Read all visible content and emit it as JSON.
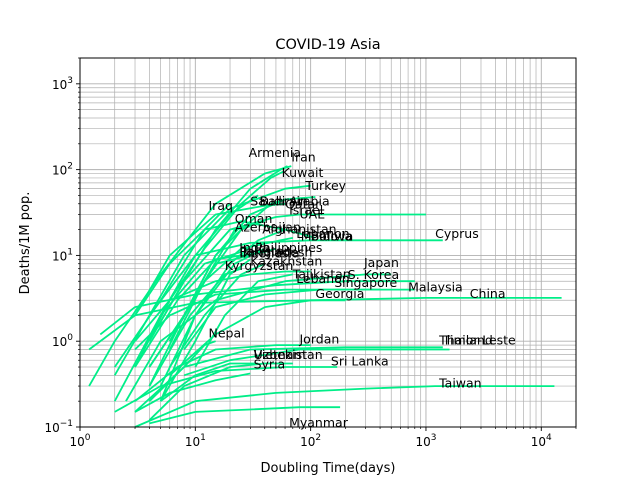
{
  "chart_data": {
    "type": "line",
    "title": "COVID-19  Asia",
    "xlabel": "Doubling Time(days)",
    "ylabel": "Deaths/1M pop.",
    "xscale": "log",
    "yscale": "log",
    "xlim": [
      1,
      20000
    ],
    "ylim": [
      0.1,
      2000
    ],
    "grid": true,
    "line_color": "#00ee88",
    "x_ticks": [
      {
        "base": "10",
        "exp": "0",
        "value": 1
      },
      {
        "base": "10",
        "exp": "1",
        "value": 10
      },
      {
        "base": "10",
        "exp": "2",
        "value": 100
      },
      {
        "base": "10",
        "exp": "3",
        "value": 1000
      },
      {
        "base": "10",
        "exp": "4",
        "value": 10000
      }
    ],
    "y_ticks": [
      {
        "base": "10",
        "exp": "−1",
        "value": 0.1
      },
      {
        "base": "10",
        "exp": "0",
        "value": 1
      },
      {
        "base": "10",
        "exp": "1",
        "value": 10
      },
      {
        "base": "10",
        "exp": "2",
        "value": 100
      },
      {
        "base": "10",
        "exp": "3",
        "value": 1000
      }
    ],
    "series": [
      {
        "name": "Armenia",
        "x": [
          4,
          8,
          15,
          30,
          55,
          63
        ],
        "y": [
          1,
          5,
          20,
          60,
          100,
          110
        ]
      },
      {
        "name": "Iran",
        "x": [
          1.2,
          2,
          5,
          15,
          40,
          68
        ],
        "y": [
          0.3,
          1,
          6,
          40,
          90,
          110
        ]
      },
      {
        "name": "Kuwait",
        "x": [
          3,
          6,
          12,
          25,
          45,
          58
        ],
        "y": [
          0.5,
          3,
          12,
          40,
          80,
          95
        ]
      },
      {
        "name": "Turkey",
        "x": [
          2,
          4,
          8,
          20,
          60,
          100
        ],
        "y": [
          0.4,
          2,
          10,
          35,
          60,
          65
        ]
      },
      {
        "name": "Bahrain",
        "x": [
          5,
          10,
          20,
          35
        ],
        "y": [
          2,
          10,
          30,
          50
        ]
      },
      {
        "name": "Saudi Arabia",
        "x": [
          4,
          8,
          15,
          30,
          60,
          110
        ],
        "y": [
          0.5,
          2,
          10,
          30,
          45,
          48
        ]
      },
      {
        "name": "Qatar",
        "x": [
          6,
          12,
          25,
          45,
          60
        ],
        "y": [
          1,
          5,
          20,
          40,
          45
        ]
      },
      {
        "name": "Israel",
        "x": [
          3,
          6,
          15,
          40,
          60
        ],
        "y": [
          2,
          10,
          30,
          38,
          40
        ]
      },
      {
        "name": "UAE",
        "x": [
          4,
          8,
          20,
          50,
          80,
          1000
        ],
        "y": [
          1,
          5,
          20,
          28,
          30,
          30
        ]
      },
      {
        "name": "Iraq",
        "x": [
          2,
          5,
          12,
          20
        ],
        "y": [
          0.5,
          3,
          20,
          40
        ]
      },
      {
        "name": "Oman",
        "x": [
          6,
          12,
          22,
          40
        ],
        "y": [
          1,
          5,
          20,
          25
        ]
      },
      {
        "name": "Azerbaijan",
        "x": [
          4,
          8,
          15,
          25,
          30
        ],
        "y": [
          0.5,
          2,
          10,
          20,
          22
        ]
      },
      {
        "name": "Afghanistan",
        "x": [
          5,
          10,
          20,
          35,
          60
        ],
        "y": [
          0.3,
          2,
          8,
          15,
          20
        ]
      },
      {
        "name": "Lebanon",
        "x": [
          3,
          6,
          15,
          30,
          60,
          100
        ],
        "y": [
          1,
          3,
          5,
          6,
          6.5,
          6.5
        ]
      },
      {
        "name": "Moldova",
        "x": [
          3,
          6,
          12,
          25,
          60,
          110
        ],
        "y": [
          2,
          8,
          20,
          25,
          20,
          16
        ]
      },
      {
        "name": "Bolivia",
        "x": [
          6,
          12,
          25,
          55,
          70
        ],
        "y": [
          0.8,
          5,
          12,
          15,
          16
        ]
      },
      {
        "name": "Cyprus",
        "x": [
          4,
          10,
          30,
          100,
          600,
          1400
        ],
        "y": [
          2,
          10,
          14,
          15,
          15,
          15
        ]
      },
      {
        "name": "India",
        "x": [
          5,
          10,
          22,
          40
        ],
        "y": [
          0.2,
          2,
          8,
          12
        ]
      },
      {
        "name": "Philippines",
        "x": [
          3,
          7,
          15,
          40,
          50
        ],
        "y": [
          0.5,
          3,
          9,
          11,
          12
        ]
      },
      {
        "name": "Pakistan",
        "x": [
          4,
          8,
          15,
          30
        ],
        "y": [
          0.3,
          2,
          8,
          10
        ]
      },
      {
        "name": "Bangladesh",
        "x": [
          5,
          10,
          20,
          30
        ],
        "y": [
          0.2,
          1,
          6,
          9
        ]
      },
      {
        "name": "Indonesia",
        "x": [
          2,
          5,
          12,
          25
        ],
        "y": [
          0.2,
          2,
          8,
          11
        ]
      },
      {
        "name": "Kazakhstan",
        "x": [
          6,
          12,
          25,
          40
        ],
        "y": [
          0.5,
          2,
          6,
          8
        ]
      },
      {
        "name": "Kyrgyzstan",
        "x": [
          4,
          9,
          18,
          25
        ],
        "y": [
          0.3,
          2,
          6,
          7
        ]
      },
      {
        "name": "Tajikistan",
        "x": [
          10,
          18,
          35,
          70
        ],
        "y": [
          0.5,
          2,
          5,
          6
        ]
      },
      {
        "name": "S. Korea",
        "x": [
          1.5,
          3,
          10,
          50,
          200,
          800
        ],
        "y": [
          1.2,
          2.5,
          3.5,
          4.5,
          5,
          5
        ]
      },
      {
        "name": "Japan",
        "x": [
          2.5,
          5,
          15,
          60,
          300,
          500
        ],
        "y": [
          0.2,
          1,
          3,
          5,
          6,
          6
        ]
      },
      {
        "name": "Singapore",
        "x": [
          8,
          15,
          40,
          120,
          400
        ],
        "y": [
          0.8,
          2.5,
          3.5,
          4,
          4
        ]
      },
      {
        "name": "Malaysia",
        "x": [
          3,
          6,
          15,
          60,
          300,
          800
        ],
        "y": [
          0.8,
          2,
          3.5,
          4,
          4,
          4
        ]
      },
      {
        "name": "China",
        "x": [
          1.2,
          3,
          10,
          100,
          1000,
          15000
        ],
        "y": [
          0.8,
          2,
          2.8,
          3,
          3.2,
          3.2
        ]
      },
      {
        "name": "Georgia",
        "x": [
          6,
          15,
          40,
          100,
          200
        ],
        "y": [
          0.4,
          1.2,
          2.5,
          3,
          3
        ]
      },
      {
        "name": "Nepal",
        "x": [
          4,
          8,
          12,
          15
        ],
        "y": [
          0.2,
          0.5,
          0.9,
          1
        ]
      },
      {
        "name": "Jordan",
        "x": [
          3,
          7,
          15,
          50,
          100
        ],
        "y": [
          0.2,
          0.5,
          0.8,
          0.9,
          0.9
        ]
      },
      {
        "name": "Thailand",
        "x": [
          3,
          8,
          30,
          200,
          800,
          1400
        ],
        "y": [
          0.15,
          0.5,
          0.8,
          0.85,
          0.85,
          0.85
        ]
      },
      {
        "name": "Timor-Leste",
        "x": [
          8,
          20,
          80,
          400,
          1600
        ],
        "y": [
          0.4,
          0.6,
          0.8,
          0.8,
          0.8
        ]
      },
      {
        "name": "Vietnam",
        "x": [
          5,
          10,
          20,
          35
        ],
        "y": [
          0.2,
          0.4,
          0.55,
          0.55
        ]
      },
      {
        "name": "Uzbekistan",
        "x": [
          4,
          8,
          20,
          40,
          70
        ],
        "y": [
          0.12,
          0.3,
          0.5,
          0.55,
          0.55
        ]
      },
      {
        "name": "Syria",
        "x": [
          3,
          6,
          15,
          25,
          30
        ],
        "y": [
          0.15,
          0.25,
          0.35,
          0.4,
          0.42
        ]
      },
      {
        "name": "Sri Lanka",
        "x": [
          2,
          5,
          15,
          60,
          170
        ],
        "y": [
          0.15,
          0.3,
          0.45,
          0.5,
          0.5
        ]
      },
      {
        "name": "Taiwan",
        "x": [
          3,
          10,
          50,
          300,
          1200,
          13000
        ],
        "y": [
          0.1,
          0.2,
          0.25,
          0.28,
          0.3,
          0.3
        ]
      },
      {
        "name": "Myanmar",
        "x": [
          4,
          10,
          30,
          80,
          180
        ],
        "y": [
          0.11,
          0.15,
          0.16,
          0.17,
          0.17
        ]
      }
    ],
    "labels": [
      {
        "text": "Armenia",
        "x": 29,
        "y": 140
      },
      {
        "text": "Iran",
        "x": 68,
        "y": 125
      },
      {
        "text": "Kuwait",
        "x": 56,
        "y": 82
      },
      {
        "text": "Turkey",
        "x": 90,
        "y": 58
      },
      {
        "text": "Bahrain",
        "x": 36,
        "y": 38
      },
      {
        "text": "Saudi Arabia",
        "x": 30,
        "y": 38
      },
      {
        "text": "Qatar",
        "x": 60,
        "y": 35
      },
      {
        "text": "Israel",
        "x": 65,
        "y": 30
      },
      {
        "text": "UAE",
        "x": 80,
        "y": 27
      },
      {
        "text": "Iraq",
        "x": 13,
        "y": 34
      },
      {
        "text": "Oman",
        "x": 22,
        "y": 24
      },
      {
        "text": "Azerbaijan",
        "x": 22,
        "y": 19
      },
      {
        "text": "Afghanistan",
        "x": 38,
        "y": 18
      },
      {
        "text": "Lebanon",
        "x": 75,
        "y": 16
      },
      {
        "text": "Moldova",
        "x": 82,
        "y": 15
      },
      {
        "text": "Bolivia",
        "x": 100,
        "y": 15
      },
      {
        "text": "Cyprus",
        "x": 1200,
        "y": 16
      },
      {
        "text": "India",
        "x": 24,
        "y": 11
      },
      {
        "text": "Philippines",
        "x": 33,
        "y": 11
      },
      {
        "text": "Pakistan",
        "x": 24,
        "y": 10
      },
      {
        "text": "Bangladesh",
        "x": 24,
        "y": 9.7
      },
      {
        "text": "Indonesia",
        "x": 24,
        "y": 9.5
      },
      {
        "text": "Kazakhstan",
        "x": 30,
        "y": 7.6
      },
      {
        "text": "Kyrgyzstan",
        "x": 18,
        "y": 6.8
      },
      {
        "text": "Tajikistan",
        "x": 70,
        "y": 5.4
      },
      {
        "text": "S. Korea",
        "x": 210,
        "y": 5.3
      },
      {
        "text": "Japan",
        "x": 290,
        "y": 7.3
      },
      {
        "text": "Lebanon",
        "x": 75,
        "y": 4.8
      },
      {
        "text": "Singapore",
        "x": 160,
        "y": 4.3
      },
      {
        "text": "Malaysia",
        "x": 700,
        "y": 3.8
      },
      {
        "text": "China",
        "x": 2400,
        "y": 3.2
      },
      {
        "text": "Georgia",
        "x": 110,
        "y": 3.2
      },
      {
        "text": "Nepal",
        "x": 13,
        "y": 1.1
      },
      {
        "text": "Jordan",
        "x": 80,
        "y": 0.94
      },
      {
        "text": "Thailand",
        "x": 1300,
        "y": 0.92
      },
      {
        "text": "Timor-Leste",
        "x": 1400,
        "y": 0.92
      },
      {
        "text": "Vietnam",
        "x": 32,
        "y": 0.62
      },
      {
        "text": "Uzbekistan",
        "x": 32,
        "y": 0.62
      },
      {
        "text": "Syria",
        "x": 32,
        "y": 0.48
      },
      {
        "text": "Sri Lanka",
        "x": 150,
        "y": 0.52
      },
      {
        "text": "Taiwan",
        "x": 1300,
        "y": 0.29
      },
      {
        "text": "Myanmar",
        "x": 65,
        "y": 0.1
      }
    ]
  }
}
